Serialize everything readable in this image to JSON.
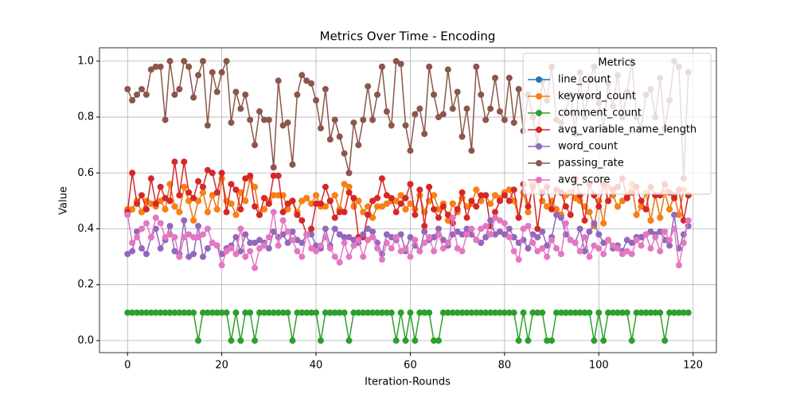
{
  "chart_data": {
    "type": "line",
    "title": "Metrics Over Time - Encoding",
    "xlabel": "Iteration-Rounds",
    "ylabel": "Value",
    "legend_title": "Metrics",
    "legend": "upper right",
    "grid": true,
    "xlim": [
      -5.95,
      124.95
    ],
    "ylim": [
      -0.043,
      1.048
    ],
    "xticks": [
      0,
      20,
      40,
      60,
      80,
      100,
      120
    ],
    "yticks": [
      {
        "value": 0,
        "label": "0.0"
      },
      0.2,
      0.4,
      0.6,
      0.8,
      {
        "value": 1,
        "label": "1.0"
      }
    ],
    "x": [
      0,
      1,
      2,
      3,
      4,
      5,
      6,
      7,
      8,
      9,
      10,
      11,
      12,
      13,
      14,
      15,
      16,
      17,
      18,
      19,
      20,
      21,
      22,
      23,
      24,
      25,
      26,
      27,
      28,
      29,
      30,
      31,
      32,
      33,
      34,
      35,
      36,
      37,
      38,
      39,
      40,
      41,
      42,
      43,
      44,
      45,
      46,
      47,
      48,
      49,
      50,
      51,
      52,
      53,
      54,
      55,
      56,
      57,
      58,
      59,
      60,
      61,
      62,
      63,
      64,
      65,
      66,
      67,
      68,
      69,
      70,
      71,
      72,
      73,
      74,
      75,
      76,
      77,
      78,
      79,
      80,
      81,
      82,
      83,
      84,
      85,
      86,
      87,
      88,
      89,
      90,
      91,
      92,
      93,
      94,
      95,
      96,
      97,
      98,
      99,
      100,
      101,
      102,
      103,
      104,
      105,
      106,
      107,
      108,
      109,
      110,
      111,
      112,
      113,
      114,
      115,
      116,
      117,
      118,
      119
    ],
    "series": [
      {
        "name": "line_count",
        "color": "#1f77b4",
        "values": [
          0.47,
          0.47,
          0.5,
          0.46,
          0.5,
          0.49,
          0.48,
          0.5,
          0.47,
          0.56,
          0.48,
          0.46,
          0.55,
          0.5,
          0.43,
          0.5,
          0.53,
          0.46,
          0.52,
          0.47,
          0.58,
          0.5,
          0.49,
          0.45,
          0.53,
          0.5,
          0.58,
          0.55,
          0.45,
          0.47,
          0.5,
          0.52,
          0.52,
          0.52,
          0.47,
          0.5,
          0.46,
          0.5,
          0.51,
          0.49,
          0.52,
          0.48,
          0.48,
          0.5,
          0.52,
          0.47,
          0.56,
          0.55,
          0.48,
          0.5,
          0.46,
          0.48,
          0.44,
          0.48,
          0.48,
          0.49,
          0.5,
          0.5,
          0.52,
          0.47,
          0.49,
          0.47,
          0.52,
          0.46,
          0.5,
          0.52,
          0.47,
          0.49,
          0.43,
          0.49,
          0.46,
          0.51,
          0.48,
          0.49,
          0.54,
          0.5,
          0.52,
          0.49,
          0.52,
          0.51,
          0.53,
          0.54,
          0.5,
          0.44,
          0.53,
          0.46,
          0.56,
          0.57,
          0.5,
          0.48,
          0.5,
          0.47,
          0.45,
          0.52,
          0.53,
          0.51,
          0.5,
          0.48,
          0.46,
          0.41,
          0.5,
          0.42,
          0.55,
          0.52,
          0.48,
          0.5,
          0.52,
          0.56,
          0.45,
          0.48,
          0.53,
          0.43,
          0.52,
          0.44,
          0.53,
          0.47,
          0.52,
          0.45,
          0.54,
          0.52
        ]
      },
      {
        "name": "keyword_count",
        "color": "#ff7f0e",
        "values": [
          0.47,
          0.47,
          0.5,
          0.46,
          0.5,
          0.49,
          0.48,
          0.5,
          0.47,
          0.56,
          0.48,
          0.46,
          0.55,
          0.5,
          0.43,
          0.5,
          0.53,
          0.46,
          0.52,
          0.47,
          0.58,
          0.5,
          0.49,
          0.45,
          0.53,
          0.5,
          0.58,
          0.55,
          0.45,
          0.47,
          0.5,
          0.52,
          0.52,
          0.52,
          0.47,
          0.5,
          0.46,
          0.5,
          0.51,
          0.49,
          0.52,
          0.48,
          0.48,
          0.5,
          0.52,
          0.47,
          0.56,
          0.55,
          0.48,
          0.5,
          0.46,
          0.48,
          0.44,
          0.48,
          0.48,
          0.49,
          0.5,
          0.5,
          0.52,
          0.47,
          0.49,
          0.47,
          0.52,
          0.46,
          0.5,
          0.52,
          0.47,
          0.49,
          0.43,
          0.49,
          0.46,
          0.51,
          0.48,
          0.49,
          0.54,
          0.5,
          0.52,
          0.49,
          0.52,
          0.51,
          0.53,
          0.54,
          0.5,
          0.44,
          0.53,
          0.46,
          0.56,
          0.57,
          0.5,
          0.48,
          0.5,
          0.47,
          0.45,
          0.52,
          0.53,
          0.51,
          0.5,
          0.48,
          0.46,
          0.41,
          0.5,
          0.42,
          0.55,
          0.52,
          0.48,
          0.5,
          0.52,
          0.56,
          0.45,
          0.48,
          0.53,
          0.43,
          0.52,
          0.44,
          0.53,
          0.47,
          0.52,
          0.45,
          0.54,
          0.52
        ]
      },
      {
        "name": "comment_count",
        "color": "#2ca02c",
        "values": [
          0.1,
          0.1,
          0.1,
          0.1,
          0.1,
          0.1,
          0.1,
          0.1,
          0.1,
          0.1,
          0.1,
          0.1,
          0.1,
          0.1,
          0.1,
          0,
          0.1,
          0.1,
          0.1,
          0.1,
          0.1,
          0.1,
          0,
          0.1,
          0,
          0.1,
          0.1,
          0,
          0.1,
          0.1,
          0.1,
          0.1,
          0.1,
          0.1,
          0.1,
          0,
          0.1,
          0.1,
          0.1,
          0.1,
          0.1,
          0,
          0.1,
          0.1,
          0.1,
          0.1,
          0.1,
          0,
          0.1,
          0.1,
          0.1,
          0.1,
          0.1,
          0.1,
          0.1,
          0.1,
          0.1,
          0,
          0.1,
          0,
          0.1,
          0,
          0.1,
          0.1,
          0.1,
          0,
          0,
          0.1,
          0.1,
          0.1,
          0.1,
          0.1,
          0.1,
          0.1,
          0.1,
          0.1,
          0.1,
          0.1,
          0.1,
          0.1,
          0.1,
          0.1,
          0.1,
          0,
          0.1,
          0,
          0.1,
          0.1,
          0.1,
          0,
          0,
          0.1,
          0.1,
          0.1,
          0.1,
          0.1,
          0.1,
          0.1,
          0.1,
          0,
          0.1,
          0,
          0.1,
          0.1,
          0.1,
          0.1,
          0.1,
          0,
          0.1,
          0.1,
          0.1,
          0.1,
          0.1,
          0.1,
          0,
          0.1,
          0.1,
          0.1,
          0.1,
          0.1
        ]
      },
      {
        "name": "avg_variable_name_length",
        "color": "#d62728",
        "values": [
          0.46,
          0.6,
          0.49,
          0.52,
          0.47,
          0.58,
          0.49,
          0.55,
          0.51,
          0.5,
          0.64,
          0.52,
          0.64,
          0.53,
          0.51,
          0.57,
          0.55,
          0.61,
          0.6,
          0.53,
          0.6,
          0.46,
          0.56,
          0.54,
          0.47,
          0.58,
          0.59,
          0.48,
          0.45,
          0.51,
          0.49,
          0.59,
          0.59,
          0.46,
          0.49,
          0.5,
          0.45,
          0.43,
          0.38,
          0.4,
          0.49,
          0.49,
          0.55,
          0.5,
          0.44,
          0.46,
          0.46,
          0.53,
          0.51,
          0.37,
          0.37,
          0.45,
          0.5,
          0.51,
          0.58,
          0.52,
          0.51,
          0.46,
          0.49,
          0.51,
          0.56,
          0.45,
          0.54,
          0.41,
          0.55,
          0.47,
          0.44,
          0.48,
          0.45,
          0.42,
          0.47,
          0.53,
          0.44,
          0.5,
          0.48,
          0.52,
          0.52,
          0.41,
          0.46,
          0.5,
          0.52,
          0.5,
          0.54,
          0.44,
          0.56,
          0.48,
          0.55,
          0.4,
          0.53,
          0.55,
          0.47,
          0.54,
          0.53,
          0.48,
          0.45,
          0.58,
          0.52,
          0.43,
          0.56,
          0.52,
          0.48,
          0.56,
          0.5,
          0.54,
          0.55,
          0.58,
          0.51,
          0.53,
          0.55,
          0.5,
          0.47,
          0.55,
          0.52,
          0.52,
          0.56,
          0.53,
          0.51,
          0.54,
          0.43,
          0.52
        ]
      },
      {
        "name": "word_count",
        "color": "#9467bd",
        "values": [
          0.31,
          0.32,
          0.39,
          0.33,
          0.31,
          0.37,
          0.4,
          0.33,
          0.36,
          0.41,
          0.32,
          0.31,
          0.43,
          0.3,
          0.31,
          0.41,
          0.3,
          0.33,
          0.35,
          0.34,
          0.31,
          0.33,
          0.34,
          0.37,
          0.32,
          0.38,
          0.35,
          0.35,
          0.36,
          0.35,
          0.33,
          0.39,
          0.37,
          0.38,
          0.35,
          0.39,
          0.36,
          0.35,
          0.38,
          0.38,
          0.34,
          0.33,
          0.4,
          0.34,
          0.4,
          0.38,
          0.37,
          0.37,
          0.36,
          0.35,
          0.38,
          0.4,
          0.39,
          0.35,
          0.31,
          0.38,
          0.37,
          0.36,
          0.38,
          0.32,
          0.37,
          0.34,
          0.32,
          0.39,
          0.36,
          0.37,
          0.4,
          0.36,
          0.34,
          0.38,
          0.39,
          0.38,
          0.4,
          0.38,
          0.36,
          0.35,
          0.37,
          0.43,
          0.38,
          0.39,
          0.38,
          0.4,
          0.37,
          0.35,
          0.36,
          0.33,
          0.38,
          0.37,
          0.39,
          0.34,
          0.37,
          0.45,
          0.44,
          0.38,
          0.36,
          0.35,
          0.4,
          0.32,
          0.39,
          0.42,
          0.38,
          0.35,
          0.36,
          0.33,
          0.34,
          0.32,
          0.36,
          0.35,
          0.37,
          0.37,
          0.38,
          0.39,
          0.38,
          0.39,
          0.36,
          0.34,
          0.45,
          0.33,
          0.38,
          0.41
        ]
      },
      {
        "name": "passing_rate",
        "color": "#8c564b",
        "values": [
          0.9,
          0.86,
          0.88,
          0.9,
          0.88,
          0.97,
          0.98,
          0.98,
          0.79,
          1.0,
          0.88,
          0.9,
          1.0,
          0.98,
          0.87,
          0.95,
          1.0,
          0.77,
          0.96,
          0.89,
          0.96,
          1.0,
          0.78,
          0.89,
          0.83,
          0.88,
          0.79,
          0.7,
          0.82,
          0.79,
          0.79,
          0.62,
          0.93,
          0.77,
          0.78,
          0.63,
          0.88,
          0.95,
          0.93,
          0.92,
          0.86,
          0.76,
          0.9,
          0.72,
          0.79,
          0.73,
          0.67,
          0.6,
          0.78,
          0.7,
          0.79,
          0.91,
          0.79,
          0.88,
          0.98,
          0.82,
          0.77,
          1.0,
          0.99,
          0.77,
          0.68,
          0.81,
          0.83,
          0.74,
          0.98,
          0.88,
          0.8,
          0.81,
          0.97,
          0.83,
          0.89,
          0.73,
          0.83,
          0.68,
          0.98,
          0.88,
          0.79,
          0.83,
          0.94,
          0.82,
          0.79,
          0.94,
          0.78,
          0.9,
          0.75,
          0.88,
          0.8,
          0.7,
          0.93,
          0.86,
          0.98,
          0.79,
          0.78,
          0.82,
          0.88,
          0.74,
          0.96,
          0.8,
          0.93,
          0.98,
          0.85,
          0.76,
          0.92,
          0.84,
          0.95,
          0.8,
          0.89,
          1.0,
          0.8,
          0.76,
          0.88,
          0.9,
          0.8,
          0.94,
          0.76,
          0.86,
          1.0,
          0.98,
          0.58,
          0.96
        ]
      },
      {
        "name": "avg_score",
        "color": "#e377c2",
        "values": [
          0.45,
          0.35,
          0.37,
          0.4,
          0.42,
          0.37,
          0.44,
          0.42,
          0.37,
          0.38,
          0.37,
          0.3,
          0.37,
          0.38,
          0.37,
          0.37,
          0.38,
          0.4,
          0.35,
          0.34,
          0.27,
          0.32,
          0.33,
          0.31,
          0.4,
          0.3,
          0.32,
          0.26,
          0.33,
          0.34,
          0.37,
          0.46,
          0.34,
          0.43,
          0.39,
          0.36,
          0.32,
          0.3,
          0.38,
          0.33,
          0.32,
          0.34,
          0.37,
          0.33,
          0.3,
          0.28,
          0.35,
          0.3,
          0.34,
          0.36,
          0.3,
          0.36,
          0.37,
          0.33,
          0.29,
          0.35,
          0.33,
          0.37,
          0.32,
          0.33,
          0.3,
          0.36,
          0.32,
          0.35,
          0.37,
          0.32,
          0.38,
          0.33,
          0.35,
          0.44,
          0.33,
          0.32,
          0.38,
          0.4,
          0.36,
          0.4,
          0.41,
          0.38,
          0.44,
          0.43,
          0.42,
          0.37,
          0.32,
          0.29,
          0.4,
          0.41,
          0.35,
          0.32,
          0.33,
          0.3,
          0.36,
          0.33,
          0.31,
          0.42,
          0.36,
          0.35,
          0.32,
          0.37,
          0.3,
          0.34,
          0.33,
          0.31,
          0.36,
          0.34,
          0.33,
          0.31,
          0.32,
          0.31,
          0.36,
          0.34,
          0.38,
          0.33,
          0.37,
          0.32,
          0.39,
          0.36,
          0.4,
          0.27,
          0.35,
          0.43
        ]
      }
    ]
  }
}
